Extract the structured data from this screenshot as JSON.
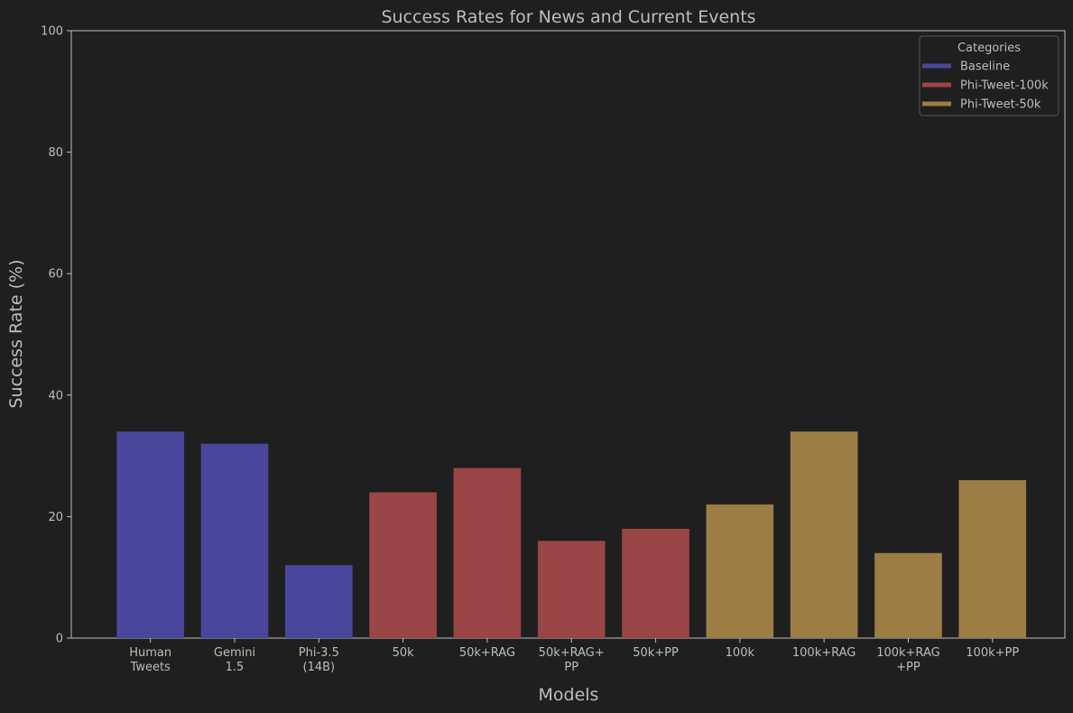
{
  "chart_data": {
    "type": "bar",
    "title": "Success Rates for News and Current Events",
    "xlabel": "Models",
    "ylabel": "Success Rate (%)",
    "ylim": [
      0,
      100
    ],
    "yticks": [
      0,
      20,
      40,
      60,
      80,
      100
    ],
    "grid": false,
    "legend": {
      "title": "Categories",
      "placement": "top-right",
      "entries": [
        {
          "label": "Baseline",
          "color": "#48479b"
        },
        {
          "label": "Phi-Tweet-100k",
          "color": "#9a4546"
        },
        {
          "label": "Phi-Tweet-50k",
          "color": "#9b7d45"
        }
      ]
    },
    "bars": [
      {
        "label": [
          "Human",
          "Tweets"
        ],
        "value": 34,
        "category": "Baseline"
      },
      {
        "label": [
          "Gemini",
          "1.5"
        ],
        "value": 32,
        "category": "Baseline"
      },
      {
        "label": [
          "Phi-3.5",
          "(14B)"
        ],
        "value": 12,
        "category": "Baseline"
      },
      {
        "label": [
          "50k"
        ],
        "value": 24,
        "category": "Phi-Tweet-100k"
      },
      {
        "label": [
          "50k+RAG"
        ],
        "value": 28,
        "category": "Phi-Tweet-100k"
      },
      {
        "label": [
          "50k+RAG+",
          "PP"
        ],
        "value": 16,
        "category": "Phi-Tweet-100k"
      },
      {
        "label": [
          "50k+PP"
        ],
        "value": 18,
        "category": "Phi-Tweet-100k"
      },
      {
        "label": [
          "100k"
        ],
        "value": 22,
        "category": "Phi-Tweet-50k"
      },
      {
        "label": [
          "100k+RAG"
        ],
        "value": 34,
        "category": "Phi-Tweet-50k"
      },
      {
        "label": [
          "100k+RAG",
          "+PP"
        ],
        "value": 14,
        "category": "Phi-Tweet-50k"
      },
      {
        "label": [
          "100k+PP"
        ],
        "value": 26,
        "category": "Phi-Tweet-50k"
      }
    ],
    "colors": {
      "background": "#1f1f1f",
      "axis": "#bdbdbd",
      "text": "#bdbdbd"
    }
  }
}
